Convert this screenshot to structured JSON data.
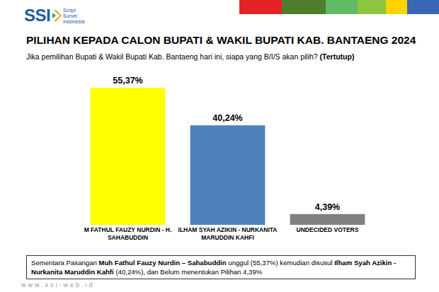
{
  "header": {
    "logo": "SSI",
    "logo_caption": [
      "Script",
      "Survei",
      "Indonesia"
    ]
  },
  "chart_data": {
    "type": "bar",
    "title": "PILIHAN KEPADA CALON BUPATI & WAKIL BUPATI KAB. BANTAENG 2024",
    "subtitle": "Jika pemilihan Bupati & Wakil Bupati Kab. Bantaeng hari ini, siapa yang B/I/S akan pilih? (Tertutup)",
    "categories": [
      "M FATHUL FAUZY NURDIN - H. SAHABUDDIN",
      "ILHAM SYAH AZIKIN - NURKANITA MARUDDIN KAHFI",
      "UNDECIDED VOTERS"
    ],
    "values": [
      55.37,
      40.24,
      4.39
    ],
    "value_labels": [
      "55,37%",
      "40,24%",
      "4,39%"
    ],
    "colors": [
      "#ffff00",
      "#4f81bd",
      "#808080"
    ],
    "ylim": [
      0,
      60
    ],
    "yticks": [],
    "grid": false,
    "data_labels": true,
    "tick_labels": "x"
  },
  "summary": [
    {
      "text": "Sementara Pasangan ",
      "bold": false
    },
    {
      "text": "Muh Fathul Fauzy Nurdin – Sahabuddin",
      "bold": true
    },
    {
      "text": " unggul (55,37%) kemudian disusul ",
      "bold": false
    },
    {
      "text": "Ilham Syah Azikin - Nurkanita Maruddin Kahfi",
      "bold": true
    },
    {
      "text": " (40,24%), dan Belum menentukan Pilihan 4,39%",
      "bold": false
    }
  ],
  "footer": "www.ssi-web.id"
}
